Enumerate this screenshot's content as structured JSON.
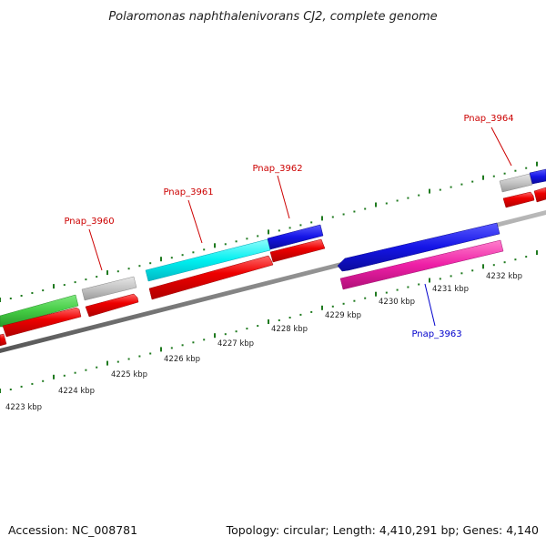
{
  "title": "Polaromonas naphthalenivorans CJ2, complete genome",
  "footer": {
    "accession": "Accession: NC_008781",
    "summary": "Topology: circular; Length: 4,410,291 bp; Genes: 4,140"
  },
  "colors": {
    "backbone": "#8c8c8c",
    "tick": "#1f7a1f",
    "label_red": "#cc0000",
    "label_blue": "#0000cc",
    "gene_red": "#ee0000",
    "gene_grey": "#c4c4c4",
    "gene_green": "#44cc44",
    "gene_cyan": "#00f0f0",
    "gene_blue": "#1414e6",
    "gene_magenta": "#ee1fa6"
  },
  "scale_labels": [
    "4223 kbp",
    "4224 kbp",
    "4225 kbp",
    "4226 kbp",
    "4227 kbp",
    "4228 kbp",
    "4229 kbp",
    "4230 kbp",
    "4231 kbp",
    "4232 kbp"
  ],
  "gene_labels": [
    {
      "text": "Pnap_3960",
      "color": "red"
    },
    {
      "text": "Pnap_3961",
      "color": "red"
    },
    {
      "text": "Pnap_3962",
      "color": "red"
    },
    {
      "text": "Pnap_3964",
      "color": "red"
    },
    {
      "text": "Pnap_3963",
      "color": "blue"
    }
  ]
}
